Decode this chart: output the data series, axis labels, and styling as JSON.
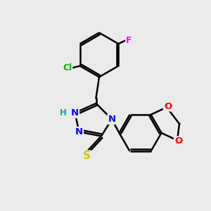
{
  "background_color": "#ebebeb",
  "bond_color": "#000000",
  "atom_colors": {
    "N": "#0000ff",
    "S": "#cccc00",
    "Cl": "#00bb00",
    "F": "#ff00ff",
    "O": "#ff0000",
    "H": "#00aaaa",
    "C": "#000000"
  },
  "figsize": [
    3.0,
    3.0
  ],
  "dpi": 100,
  "xlim": [
    0,
    10
  ],
  "ylim": [
    0,
    10
  ]
}
